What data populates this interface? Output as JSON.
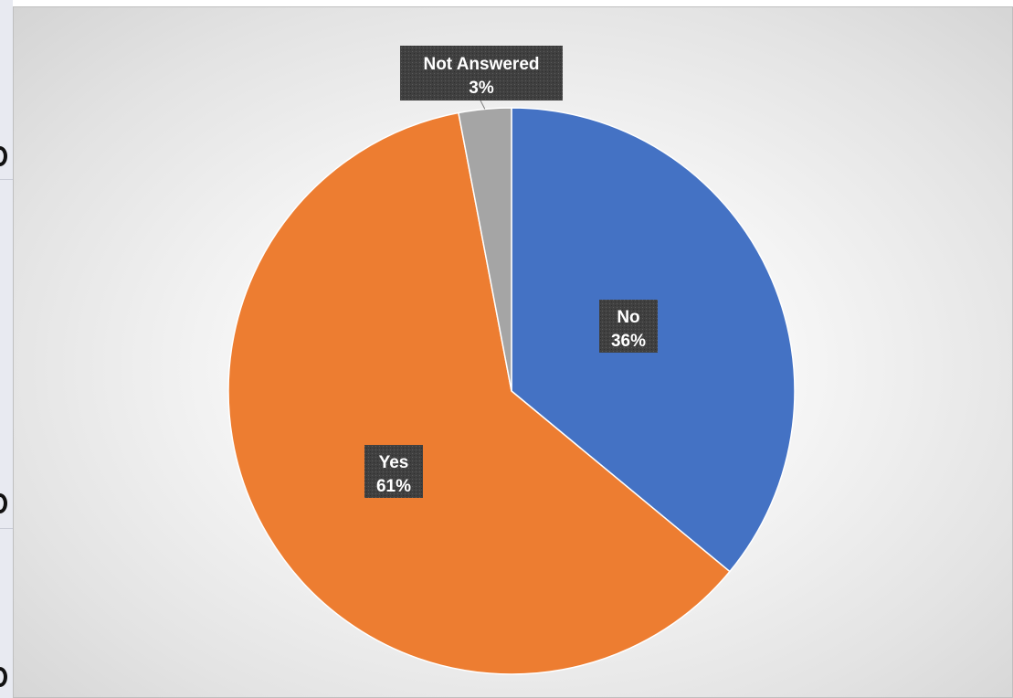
{
  "chart_data": {
    "type": "pie",
    "title": "",
    "slices": [
      {
        "label": "No",
        "value": 36,
        "value_label": "36%",
        "color": "#4472c4"
      },
      {
        "label": "Yes",
        "value": 61,
        "value_label": "61%",
        "color": "#ed7d31"
      },
      {
        "label": "Not Answered",
        "value": 3,
        "value_label": "3%",
        "color": "#a5a5a5"
      }
    ],
    "start": "12 o'clock",
    "direction": "clockwise",
    "legend": "none",
    "label_background": "#404040"
  }
}
